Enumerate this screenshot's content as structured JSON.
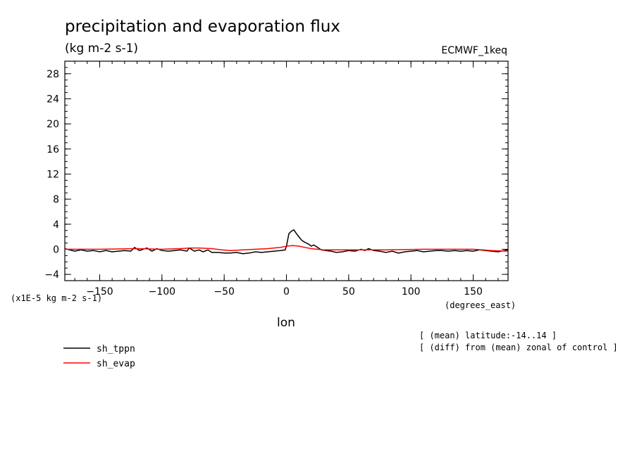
{
  "chart_data": {
    "type": "line",
    "title": "precipitation and evaporation flux",
    "subtitle": "(kg m-2 s-1)",
    "dataset_label": "ECMWF_1keq",
    "xlabel": "lon",
    "x_units": "(degrees_east)",
    "y_scale_note": "(x1E-5 kg m-2 s-1)",
    "xlim": [
      -178,
      178
    ],
    "ylim": [
      -5,
      30
    ],
    "x_ticks": [
      -150,
      -100,
      -50,
      0,
      50,
      100,
      150
    ],
    "y_ticks": [
      -4,
      0,
      4,
      8,
      12,
      16,
      20,
      24,
      28
    ],
    "notes": [
      "[ (mean) latitude:-14..14 ]",
      "[ (diff) from (mean) zonal of control ]"
    ],
    "grid": false,
    "legend_position": "bottom-left",
    "series": [
      {
        "name": "sh_tppn",
        "color": "#000000",
        "x": [
          -178,
          -170,
          -165,
          -160,
          -155,
          -150,
          -145,
          -140,
          -135,
          -130,
          -125,
          -122,
          -118,
          -112,
          -108,
          -104,
          -100,
          -95,
          -90,
          -85,
          -80,
          -78,
          -74,
          -70,
          -67,
          -63,
          -60,
          -55,
          -50,
          -45,
          -40,
          -35,
          -30,
          -25,
          -20,
          -15,
          -10,
          -5,
          -1,
          0,
          2,
          4,
          6,
          8,
          10,
          12,
          14,
          16,
          18,
          20,
          22,
          25,
          28,
          32,
          36,
          40,
          45,
          50,
          55,
          60,
          63,
          66,
          70,
          75,
          80,
          85,
          90,
          95,
          100,
          105,
          110,
          115,
          120,
          125,
          130,
          135,
          140,
          145,
          150,
          155,
          160,
          165,
          170,
          175,
          178
        ],
        "y": [
          0.1,
          -0.3,
          -0.1,
          -0.3,
          -0.2,
          -0.4,
          -0.2,
          -0.4,
          -0.3,
          -0.2,
          -0.3,
          0.3,
          -0.2,
          0.2,
          -0.3,
          0.1,
          -0.2,
          -0.3,
          -0.2,
          -0.1,
          -0.3,
          0.2,
          -0.3,
          -0.1,
          -0.4,
          -0.1,
          -0.5,
          -0.5,
          -0.6,
          -0.6,
          -0.5,
          -0.7,
          -0.6,
          -0.4,
          -0.5,
          -0.4,
          -0.3,
          -0.2,
          -0.1,
          0.5,
          2.5,
          2.9,
          3.1,
          2.5,
          2.0,
          1.5,
          1.2,
          1.0,
          0.8,
          0.5,
          0.7,
          0.3,
          -0.1,
          -0.2,
          -0.3,
          -0.5,
          -0.4,
          -0.2,
          -0.3,
          0.0,
          -0.2,
          0.1,
          -0.2,
          -0.3,
          -0.5,
          -0.3,
          -0.6,
          -0.4,
          -0.3,
          -0.2,
          -0.4,
          -0.3,
          -0.2,
          -0.2,
          -0.3,
          -0.2,
          -0.3,
          -0.2,
          -0.3,
          -0.1,
          -0.2,
          -0.3,
          -0.4,
          -0.2,
          -0.1
        ]
      },
      {
        "name": "sh_evap",
        "color": "#ff0000",
        "x": [
          -178,
          -150,
          -120,
          -100,
          -85,
          -78,
          -70,
          -60,
          -52,
          -45,
          -35,
          -25,
          -15,
          -5,
          0,
          5,
          10,
          15,
          20,
          30,
          50,
          80,
          110,
          130,
          150,
          165,
          178
        ],
        "y": [
          0.0,
          0.0,
          0.1,
          0.0,
          0.1,
          0.2,
          0.2,
          0.1,
          -0.1,
          -0.2,
          -0.1,
          0.0,
          0.1,
          0.3,
          0.5,
          0.6,
          0.5,
          0.3,
          0.1,
          -0.1,
          -0.1,
          -0.1,
          0.0,
          0.0,
          0.0,
          -0.2,
          -0.3
        ]
      }
    ]
  }
}
